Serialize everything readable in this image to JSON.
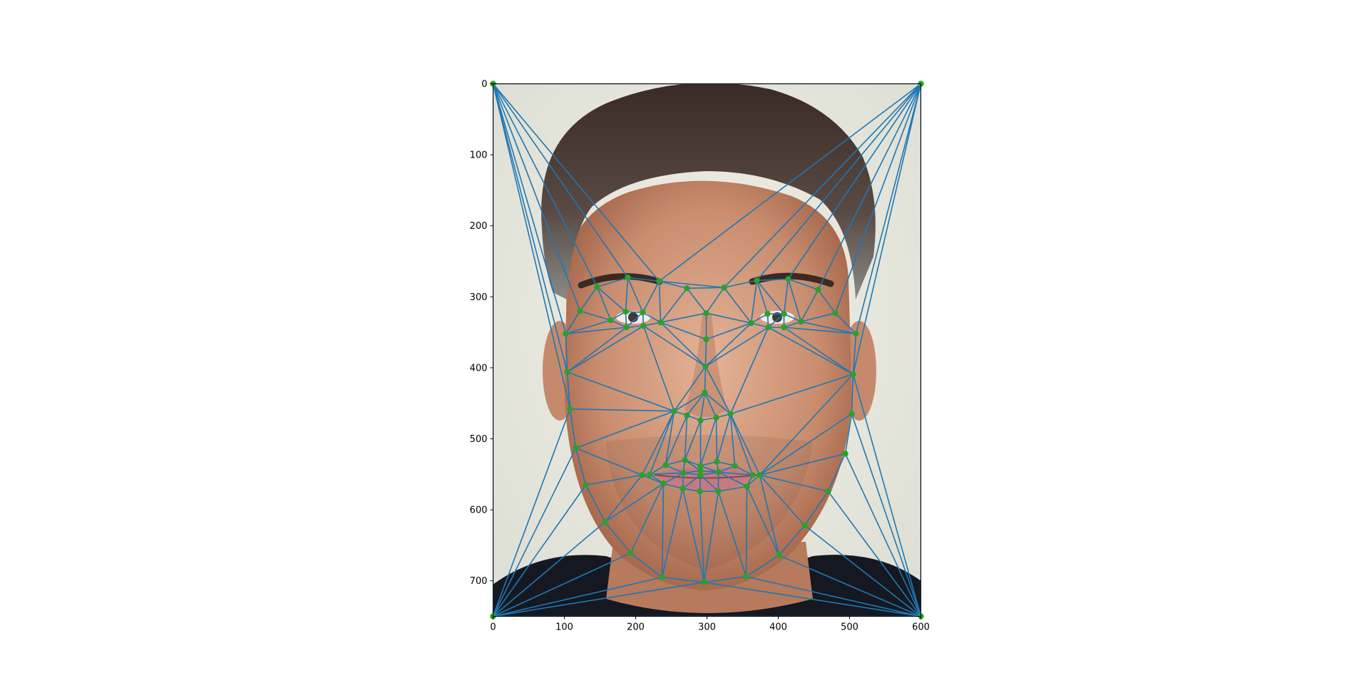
{
  "chart_data": {
    "type": "scatter",
    "title": "",
    "xlabel": "",
    "ylabel": "",
    "xlim": [
      0,
      600
    ],
    "ylim": [
      750,
      0
    ],
    "y_inverted": true,
    "grid": false,
    "legend": "none",
    "background": "photograph of a face",
    "xticks": [
      "0",
      "100",
      "200",
      "300",
      "400",
      "500",
      "600"
    ],
    "xtick_values": [
      0,
      100,
      200,
      300,
      400,
      500,
      600
    ],
    "yticks": [
      "0",
      "100",
      "200",
      "300",
      "400",
      "500",
      "600",
      "700"
    ],
    "ytick_values": [
      0,
      100,
      200,
      300,
      400,
      500,
      600,
      700
    ],
    "colors": {
      "mesh": "#1f77b4",
      "points": "#2ca02c",
      "frame": "#000000"
    },
    "points": [
      [
        0,
        0
      ],
      [
        600,
        0
      ],
      [
        0,
        750
      ],
      [
        600,
        750
      ],
      [
        102,
        352
      ],
      [
        104,
        406
      ],
      [
        108,
        458
      ],
      [
        116,
        513
      ],
      [
        130,
        565
      ],
      [
        157,
        617
      ],
      [
        193,
        661
      ],
      [
        237,
        695
      ],
      [
        296,
        702
      ],
      [
        355,
        694
      ],
      [
        401,
        664
      ],
      [
        437,
        622
      ],
      [
        470,
        574
      ],
      [
        494,
        521
      ],
      [
        503,
        465
      ],
      [
        505,
        409
      ],
      [
        509,
        352
      ],
      [
        122,
        320
      ],
      [
        146,
        286
      ],
      [
        189,
        273
      ],
      [
        233,
        278
      ],
      [
        272,
        288
      ],
      [
        324,
        287
      ],
      [
        370,
        277
      ],
      [
        414,
        275
      ],
      [
        456,
        290
      ],
      [
        480,
        323
      ],
      [
        299,
        323
      ],
      [
        299,
        360
      ],
      [
        298,
        398
      ],
      [
        297,
        435
      ],
      [
        254,
        461
      ],
      [
        272,
        467
      ],
      [
        291,
        474
      ],
      [
        313,
        470
      ],
      [
        333,
        465
      ],
      [
        165,
        333
      ],
      [
        186,
        321
      ],
      [
        210,
        322
      ],
      [
        235,
        336
      ],
      [
        211,
        341
      ],
      [
        187,
        343
      ],
      [
        362,
        337
      ],
      [
        385,
        324
      ],
      [
        408,
        324
      ],
      [
        432,
        335
      ],
      [
        408,
        343
      ],
      [
        386,
        343
      ],
      [
        209,
        551
      ],
      [
        220,
        550
      ],
      [
        242,
        537
      ],
      [
        269,
        530
      ],
      [
        291,
        538
      ],
      [
        314,
        532
      ],
      [
        339,
        538
      ],
      [
        364,
        551
      ],
      [
        374,
        551
      ],
      [
        356,
        567
      ],
      [
        316,
        574
      ],
      [
        290,
        574
      ],
      [
        266,
        570
      ],
      [
        239,
        563
      ],
      [
        267,
        548
      ],
      [
        291,
        551
      ],
      [
        316,
        547
      ],
      [
        291,
        545
      ]
    ],
    "triangles": [
      [
        0,
        21,
        4
      ],
      [
        0,
        22,
        21
      ],
      [
        0,
        23,
        22
      ],
      [
        0,
        24,
        23
      ],
      [
        0,
        1,
        24
      ],
      [
        1,
        26,
        24
      ],
      [
        24,
        26,
        25
      ],
      [
        1,
        27,
        26
      ],
      [
        1,
        28,
        27
      ],
      [
        1,
        29,
        28
      ],
      [
        1,
        30,
        29
      ],
      [
        1,
        20,
        30
      ],
      [
        0,
        4,
        5
      ],
      [
        0,
        5,
        6
      ],
      [
        0,
        6,
        2
      ],
      [
        2,
        6,
        7
      ],
      [
        2,
        7,
        8
      ],
      [
        2,
        8,
        9
      ],
      [
        2,
        9,
        10
      ],
      [
        2,
        10,
        11
      ],
      [
        2,
        11,
        12
      ],
      [
        2,
        12,
        3
      ],
      [
        3,
        12,
        13
      ],
      [
        3,
        13,
        14
      ],
      [
        3,
        14,
        15
      ],
      [
        3,
        15,
        16
      ],
      [
        3,
        16,
        17
      ],
      [
        3,
        17,
        18
      ],
      [
        3,
        18,
        19
      ],
      [
        3,
        19,
        1
      ],
      [
        1,
        19,
        20
      ],
      [
        4,
        21,
        40
      ],
      [
        21,
        22,
        40
      ],
      [
        22,
        41,
        40
      ],
      [
        22,
        23,
        41
      ],
      [
        23,
        42,
        41
      ],
      [
        23,
        24,
        42
      ],
      [
        24,
        43,
        42
      ],
      [
        24,
        25,
        43
      ],
      [
        25,
        31,
        43
      ],
      [
        25,
        26,
        31
      ],
      [
        26,
        46,
        31
      ],
      [
        26,
        27,
        46
      ],
      [
        27,
        47,
        46
      ],
      [
        27,
        48,
        47
      ],
      [
        27,
        28,
        48
      ],
      [
        28,
        49,
        48
      ],
      [
        28,
        29,
        49
      ],
      [
        29,
        30,
        49
      ],
      [
        30,
        20,
        49
      ],
      [
        40,
        41,
        45
      ],
      [
        41,
        42,
        45
      ],
      [
        42,
        44,
        45
      ],
      [
        42,
        43,
        44
      ],
      [
        46,
        47,
        51
      ],
      [
        47,
        48,
        51
      ],
      [
        48,
        50,
        51
      ],
      [
        48,
        49,
        50
      ],
      [
        43,
        31,
        32
      ],
      [
        46,
        32,
        31
      ],
      [
        43,
        32,
        33
      ],
      [
        46,
        33,
        32
      ],
      [
        44,
        43,
        33
      ],
      [
        46,
        51,
        33
      ],
      [
        4,
        40,
        45
      ],
      [
        4,
        45,
        5
      ],
      [
        5,
        45,
        44
      ],
      [
        5,
        44,
        35
      ],
      [
        44,
        33,
        35
      ],
      [
        33,
        34,
        35
      ],
      [
        33,
        51,
        39
      ],
      [
        33,
        39,
        34
      ],
      [
        51,
        50,
        19
      ],
      [
        50,
        49,
        20
      ],
      [
        50,
        20,
        19
      ],
      [
        51,
        19,
        39
      ],
      [
        34,
        35,
        36
      ],
      [
        34,
        36,
        37
      ],
      [
        34,
        37,
        38
      ],
      [
        34,
        38,
        39
      ],
      [
        5,
        35,
        6
      ],
      [
        6,
        35,
        7
      ],
      [
        35,
        52,
        7
      ],
      [
        35,
        53,
        52
      ],
      [
        35,
        54,
        53
      ],
      [
        35,
        36,
        54
      ],
      [
        36,
        55,
        54
      ],
      [
        36,
        37,
        55
      ],
      [
        37,
        56,
        55
      ],
      [
        37,
        38,
        56
      ],
      [
        38,
        57,
        56
      ],
      [
        38,
        39,
        57
      ],
      [
        39,
        58,
        57
      ],
      [
        39,
        59,
        58
      ],
      [
        39,
        60,
        59
      ],
      [
        39,
        19,
        60
      ],
      [
        19,
        18,
        60
      ],
      [
        7,
        52,
        8
      ],
      [
        52,
        53,
        65
      ],
      [
        52,
        65,
        9
      ],
      [
        8,
        52,
        9
      ],
      [
        9,
        65,
        10
      ],
      [
        10,
        65,
        11
      ],
      [
        65,
        64,
        11
      ],
      [
        64,
        63,
        12
      ],
      [
        64,
        12,
        11
      ],
      [
        63,
        62,
        12
      ],
      [
        62,
        61,
        13
      ],
      [
        62,
        13,
        12
      ],
      [
        61,
        60,
        14
      ],
      [
        61,
        14,
        13
      ],
      [
        60,
        15,
        14
      ],
      [
        60,
        16,
        15
      ],
      [
        60,
        17,
        16
      ],
      [
        60,
        18,
        17
      ],
      [
        53,
        54,
        66
      ],
      [
        54,
        55,
        66
      ],
      [
        55,
        69,
        66
      ],
      [
        55,
        56,
        69
      ],
      [
        56,
        57,
        68
      ],
      [
        56,
        68,
        69
      ],
      [
        57,
        58,
        68
      ],
      [
        58,
        59,
        68
      ],
      [
        59,
        60,
        61
      ],
      [
        53,
        66,
        65
      ],
      [
        66,
        64,
        65
      ],
      [
        66,
        67,
        64
      ],
      [
        67,
        63,
        64
      ],
      [
        67,
        68,
        62
      ],
      [
        67,
        62,
        63
      ],
      [
        68,
        61,
        62
      ],
      [
        68,
        59,
        61
      ],
      [
        66,
        69,
        67
      ],
      [
        69,
        68,
        67
      ]
    ]
  }
}
